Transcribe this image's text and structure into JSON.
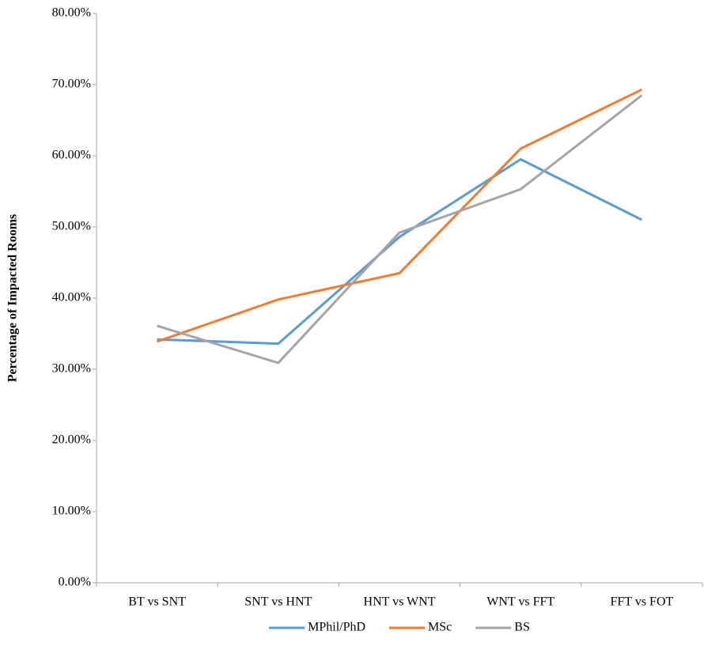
{
  "chart_data": {
    "type": "line",
    "y_label": "Percentage of Impacted Rooms",
    "categories": [
      "BT vs SNT",
      "SNT vs HNT",
      "HNT vs WNT",
      "WNT vs FFT",
      "FFT vs FOT"
    ],
    "series": [
      {
        "name": "MPhil/PhD",
        "color": "#5b9bd5",
        "values": [
          34.2,
          33.6,
          48.6,
          59.5,
          51.0
        ]
      },
      {
        "name": "MSc",
        "color": "#ed7d31",
        "values": [
          33.9,
          39.8,
          43.5,
          61.0,
          69.3
        ]
      },
      {
        "name": "BS",
        "color": "#a5a5a5",
        "values": [
          36.1,
          30.9,
          49.2,
          55.3,
          68.5
        ]
      }
    ],
    "ylim": [
      0,
      80
    ],
    "yticks": [
      {
        "value": 0,
        "label": "0.00%"
      },
      {
        "value": 10,
        "label": "10.00%"
      },
      {
        "value": 20,
        "label": "20.00%"
      },
      {
        "value": 30,
        "label": "30.00%"
      },
      {
        "value": 40,
        "label": "40.00%"
      },
      {
        "value": 50,
        "label": "50.00%"
      },
      {
        "value": 60,
        "label": "60.00%"
      },
      {
        "value": 70,
        "label": "70.00%"
      },
      {
        "value": 80,
        "label": "80.00%"
      }
    ],
    "grid": false,
    "legend": "bottom"
  }
}
